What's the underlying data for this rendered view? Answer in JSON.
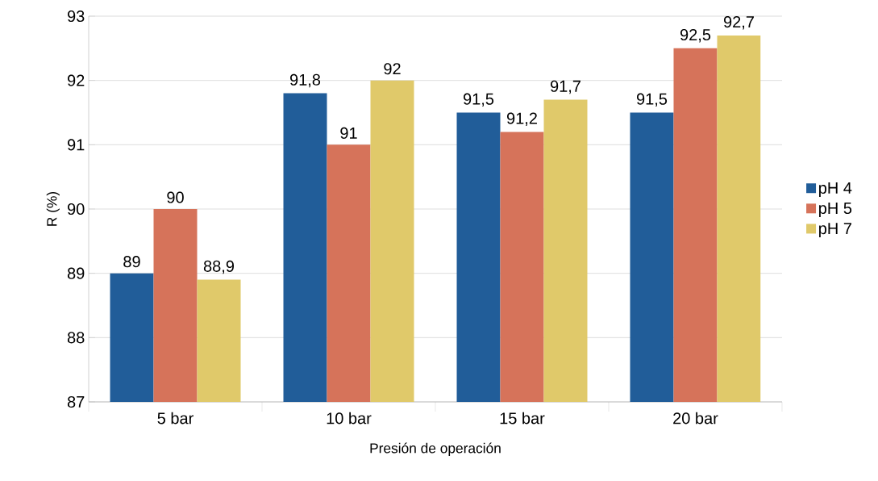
{
  "chart_data": {
    "type": "bar",
    "xlabel": "Presión de operación",
    "ylabel": "R (%)",
    "categories": [
      "5 bar",
      "10 bar",
      "15 bar",
      "20 bar"
    ],
    "series": [
      {
        "name": "pH 4",
        "color": "#215d99",
        "values": [
          89,
          91.8,
          91.5,
          91.5
        ],
        "value_labels": [
          "89",
          "91,8",
          "91,5",
          "91,5"
        ]
      },
      {
        "name": "pH 5",
        "color": "#d6735a",
        "values": [
          90,
          91,
          91.2,
          92.5
        ],
        "value_labels": [
          "90",
          "91",
          "91,2",
          "92,5"
        ]
      },
      {
        "name": "pH 7",
        "color": "#e0c96a",
        "values": [
          88.9,
          92,
          91.7,
          92.7
        ],
        "value_labels": [
          "88,9",
          "92",
          "91,7",
          "92,7"
        ]
      }
    ],
    "ylim": [
      87,
      93
    ],
    "yticks": [
      87,
      88,
      89,
      90,
      91,
      92,
      93
    ],
    "grid": "y",
    "legend": "right"
  }
}
